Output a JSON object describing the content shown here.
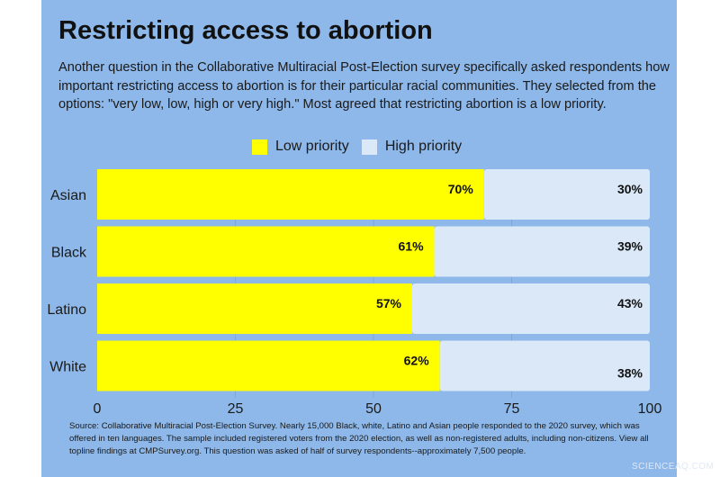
{
  "title": "Restricting access to abortion",
  "subtitle": "Another question in the Collaborative Multiracial Post-Election survey specifically asked respondents how important restricting access to abortion is for their particular racial communities. They selected from the options: \"very low, low, high or very high.\" Most agreed that restricting abortion is a low priority.",
  "source": "Source: Collaborative Multiracial Post-Election Survey. Nearly 15,000 Black, white, Latino and Asian people responded to the 2020 survey, which was offered in ten languages. The sample included registered voters from the 2020 election, as well as non-registered adults, including non-citizens. View all topline findings at CMPSurvey.org. This question was asked of half of survey respondents--approximately 7,500 people.",
  "watermark": "SCIENCEAQ.COM",
  "chart_data": {
    "type": "bar",
    "orientation": "horizontal",
    "stacked": true,
    "categories": [
      "Asian",
      "Black",
      "Latino",
      "White"
    ],
    "series": [
      {
        "name": "Low priority",
        "values": [
          70,
          61,
          57,
          62
        ],
        "color": "#ffff00",
        "labels": [
          "70%",
          "61%",
          "57%",
          "62%"
        ]
      },
      {
        "name": "High priority",
        "values": [
          30,
          39,
          43,
          38
        ],
        "color": "#dae8f8",
        "labels": [
          "30%",
          "39%",
          "43%",
          "38%"
        ]
      }
    ],
    "xlim": [
      0,
      100
    ],
    "xticks": [
      "0",
      "25",
      "50",
      "75",
      "100"
    ],
    "legend": "top-center",
    "grid": true,
    "background": "#8db8e9"
  }
}
